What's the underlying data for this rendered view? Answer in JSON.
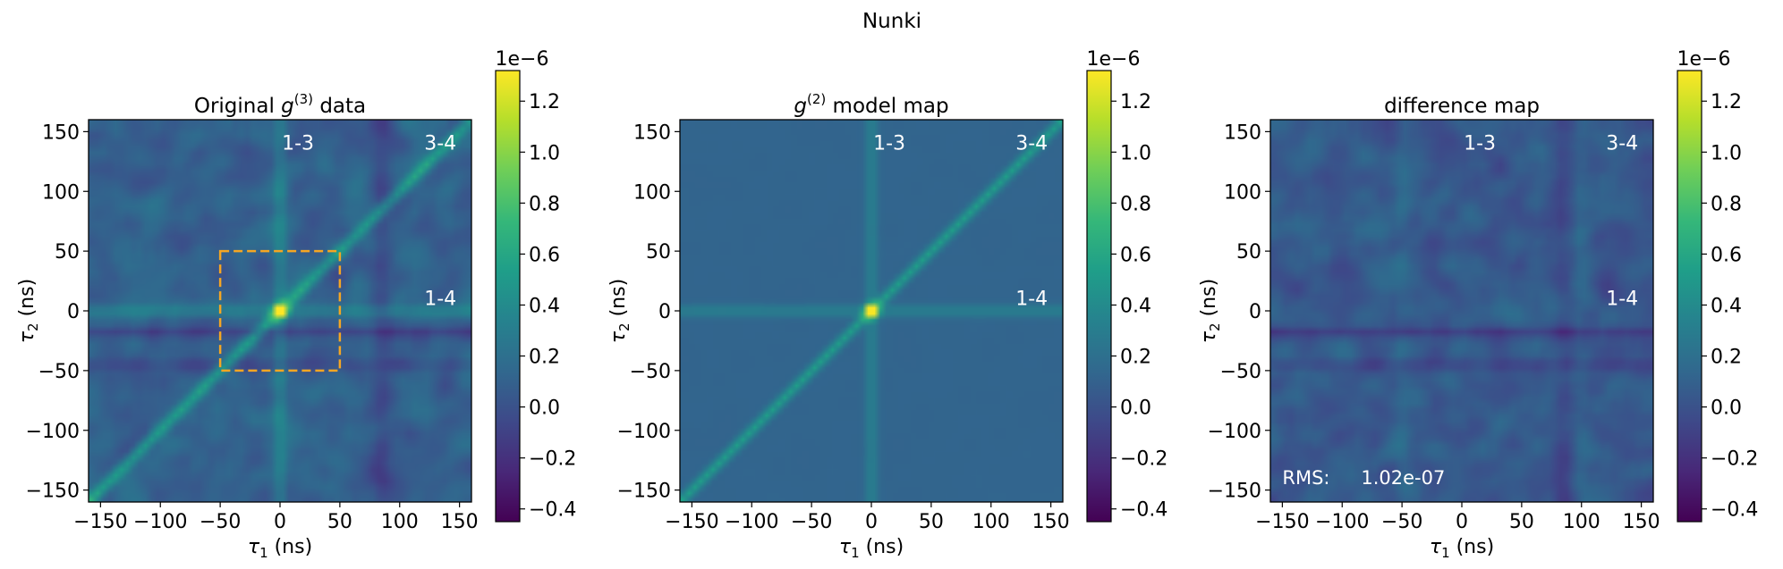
{
  "figure": {
    "title": "Nunki"
  },
  "colors": {
    "viridis": [
      "#440154",
      "#482878",
      "#3e4989",
      "#31688e",
      "#26828e",
      "#1f9e89",
      "#35b779",
      "#6ece58",
      "#b5de2b",
      "#fde725"
    ],
    "box": "#f5a623",
    "annotation": "#ffffff"
  },
  "chart_data": [
    {
      "type": "heatmap",
      "title_prefix": "Original ",
      "title_symbol": "g",
      "title_sup": "(3)",
      "title_suffix": " data",
      "xlabel_symbol": "τ",
      "xlabel_sub": "1",
      "xlabel_unit": " (ns)",
      "ylabel_symbol": "τ",
      "ylabel_sub": "2",
      "ylabel_unit": " (ns)",
      "xlim": [
        -160,
        160
      ],
      "ylim": [
        -160,
        160
      ],
      "xticks": [
        -150,
        -100,
        -50,
        0,
        50,
        100,
        150
      ],
      "yticks": [
        -150,
        -100,
        -50,
        0,
        50,
        100,
        150
      ],
      "xtick_labels": [
        "−150",
        "−100",
        "−50",
        "0",
        "50",
        "100",
        "150"
      ],
      "ytick_labels": [
        "−150",
        "−100",
        "−50",
        "0",
        "50",
        "100",
        "150"
      ],
      "features": {
        "diagonal_ridge": "tau2 = tau1",
        "horizontal_ridge_tau2": 0,
        "vertical_ridge_tau1": 0,
        "peak": {
          "tau1": 0,
          "tau2": 0,
          "value": 1.3e-06
        },
        "background": "noisy, about 0.1e-6"
      },
      "labels": [
        {
          "text": "1-3",
          "tau1": 15,
          "tau2": 135
        },
        {
          "text": "3-4",
          "tau1": 134,
          "tau2": 135
        },
        {
          "text": "1-4",
          "tau1": 134,
          "tau2": 5
        }
      ],
      "dashed_box": {
        "tau1": [
          -50,
          50
        ],
        "tau2": [
          -50,
          50
        ]
      },
      "colorbar": {
        "range": [
          -0.45,
          1.32
        ],
        "ticks": [
          -0.4,
          -0.2,
          0.0,
          0.2,
          0.4,
          0.6,
          0.8,
          1.0,
          1.2
        ],
        "tick_labels": [
          "−0.4",
          "−0.2",
          "0.0",
          "0.2",
          "0.4",
          "0.6",
          "0.8",
          "1.0",
          "1.2"
        ],
        "offset_label": "1e−6"
      }
    },
    {
      "type": "heatmap",
      "title_prefix": "",
      "title_symbol": "g",
      "title_sup": "(2)",
      "title_suffix": " model map",
      "xlabel_symbol": "τ",
      "xlabel_sub": "1",
      "xlabel_unit": " (ns)",
      "ylabel_symbol": "τ",
      "ylabel_sub": "2",
      "ylabel_unit": " (ns)",
      "xlim": [
        -160,
        160
      ],
      "ylim": [
        -160,
        160
      ],
      "xticks": [
        -150,
        -100,
        -50,
        0,
        50,
        100,
        150
      ],
      "yticks": [
        -150,
        -100,
        -50,
        0,
        50,
        100,
        150
      ],
      "xtick_labels": [
        "−150",
        "−100",
        "−50",
        "0",
        "50",
        "100",
        "150"
      ],
      "ytick_labels": [
        "−150",
        "−100",
        "−50",
        "0",
        "50",
        "100",
        "150"
      ],
      "features": {
        "diagonal_ridge": "tau2 = tau1",
        "horizontal_ridge_tau2": 0,
        "vertical_ridge_tau1": 0,
        "peak": {
          "tau1": 0,
          "tau2": 0,
          "value": 1.3e-06
        },
        "background": "smooth, about 0.1e-6"
      },
      "labels": [
        {
          "text": "1-3",
          "tau1": 15,
          "tau2": 135
        },
        {
          "text": "3-4",
          "tau1": 134,
          "tau2": 135
        },
        {
          "text": "1-4",
          "tau1": 134,
          "tau2": 5
        }
      ],
      "colorbar": {
        "range": [
          -0.45,
          1.32
        ],
        "ticks": [
          -0.4,
          -0.2,
          0.0,
          0.2,
          0.4,
          0.6,
          0.8,
          1.0,
          1.2
        ],
        "tick_labels": [
          "−0.4",
          "−0.2",
          "0.0",
          "0.2",
          "0.4",
          "0.6",
          "0.8",
          "1.0",
          "1.2"
        ],
        "offset_label": "1e−6"
      }
    },
    {
      "type": "heatmap",
      "title_prefix": "difference map",
      "title_symbol": "",
      "title_sup": "",
      "title_suffix": "",
      "xlabel_symbol": "τ",
      "xlabel_sub": "1",
      "xlabel_unit": " (ns)",
      "ylabel_symbol": "τ",
      "ylabel_sub": "2",
      "ylabel_unit": " (ns)",
      "xlim": [
        -160,
        160
      ],
      "ylim": [
        -160,
        160
      ],
      "xticks": [
        -150,
        -100,
        -50,
        0,
        50,
        100,
        150
      ],
      "yticks": [
        -150,
        -100,
        -50,
        0,
        50,
        100,
        150
      ],
      "xtick_labels": [
        "−150",
        "−100",
        "−50",
        "0",
        "50",
        "100",
        "150"
      ],
      "ytick_labels": [
        "−150",
        "−100",
        "−50",
        "0",
        "50",
        "100",
        "150"
      ],
      "features": {
        "diagonal_ridge": "none",
        "background": "noisy residual, about 0.05e-6",
        "rms": 1.02e-07
      },
      "labels": [
        {
          "text": "1-3",
          "tau1": 15,
          "tau2": 135
        },
        {
          "text": "3-4",
          "tau1": 134,
          "tau2": 135
        },
        {
          "text": "1-4",
          "tau1": 134,
          "tau2": 5
        }
      ],
      "rms_label": {
        "text": "RMS:",
        "value": "1.02e-07",
        "tau1": -150,
        "tau2": -145
      },
      "colorbar": {
        "range": [
          -0.45,
          1.32
        ],
        "ticks": [
          -0.4,
          -0.2,
          0.0,
          0.2,
          0.4,
          0.6,
          0.8,
          1.0,
          1.2
        ],
        "tick_labels": [
          "−0.4",
          "−0.2",
          "0.0",
          "0.2",
          "0.4",
          "0.6",
          "0.8",
          "1.0",
          "1.2"
        ],
        "offset_label": "1e−6"
      }
    }
  ]
}
